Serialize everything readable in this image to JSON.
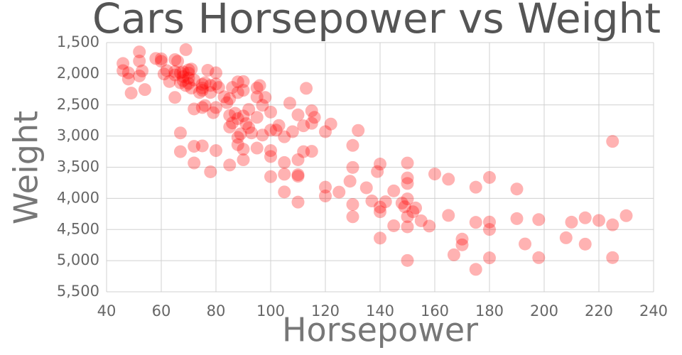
{
  "chart_data": {
    "type": "scatter",
    "title": "Cars Horsepower vs Weight",
    "x_label": "Horsepower",
    "y_label": "Weight",
    "color": "#ff0000",
    "grid": true,
    "y_inverted": true,
    "xlim": [
      40,
      240
    ],
    "xticks": [
      40,
      60,
      80,
      100,
      120,
      140,
      160,
      180,
      200,
      220,
      240
    ],
    "ylim": [
      1500,
      5500
    ],
    "yticks": [
      {
        "value": 1500,
        "label": "1,500"
      },
      {
        "value": 2000,
        "label": "2,000"
      },
      {
        "value": 2500,
        "label": "2,500"
      },
      {
        "value": 3000,
        "label": "3,000"
      },
      {
        "value": 3500,
        "label": "3,500"
      },
      {
        "value": 4000,
        "label": "4,000"
      },
      {
        "value": 4500,
        "label": "4,500"
      },
      {
        "value": 5000,
        "label": "5,000"
      },
      {
        "value": 5500,
        "label": "5,500"
      }
    ],
    "x": [
      46,
      46,
      48,
      48,
      49,
      52,
      52,
      52,
      53,
      54,
      58,
      60,
      60,
      61,
      62,
      63,
      65,
      65,
      65,
      65,
      66,
      67,
      67,
      67,
      67,
      68,
      68,
      68,
      69,
      69,
      70,
      70,
      70,
      70,
      71,
      71,
      72,
      72,
      72,
      72,
      74,
      75,
      75,
      75,
      75,
      75,
      76,
      76,
      77,
      78,
      78,
      78,
      79,
      80,
      80,
      80,
      80,
      81,
      83,
      84,
      85,
      85,
      85,
      85,
      86,
      86,
      87,
      88,
      88,
      88,
      88,
      88,
      89,
      90,
      90,
      90,
      90,
      90,
      91,
      92,
      92,
      93,
      95,
      95,
      95,
      95,
      96,
      97,
      97,
      98,
      100,
      100,
      100,
      100,
      100,
      102,
      103,
      105,
      105,
      105,
      105,
      107,
      108,
      110,
      110,
      110,
      110,
      110,
      112,
      112,
      113,
      115,
      115,
      115,
      116,
      120,
      120,
      120,
      122,
      125,
      129,
      130,
      130,
      130,
      130,
      132,
      135,
      137,
      139,
      140,
      140,
      140,
      140,
      142,
      145,
      145,
      148,
      149,
      150,
      150,
      150,
      150,
      150,
      150,
      150,
      152,
      153,
      155,
      158,
      160,
      165,
      165,
      167,
      170,
      170,
      175,
      175,
      175,
      180,
      180,
      180,
      180,
      190,
      190,
      193,
      198,
      198,
      208,
      210,
      215,
      215,
      220,
      225,
      225,
      225,
      230
    ],
    "values": [
      1835,
      1950,
      2085,
      1985,
      2310,
      1649,
      2035,
      1795,
      1955,
      2254,
      1755,
      1760,
      1800,
      2003,
      1950,
      2125,
      1773,
      1965,
      2019,
      2380,
      1800,
      1985,
      2145,
      2950,
      3250,
      1970,
      2045,
      2110,
      1613,
      2189,
      1990,
      2070,
      2155,
      1937,
      2230,
      1925,
      2100,
      2565,
      3165,
      3432,
      2300,
      2171,
      2230,
      2265,
      2542,
      3158,
      2144,
      2511,
      1945,
      2188,
      2300,
      3574,
      2625,
      2164,
      1985,
      2542,
      3233,
      2220,
      2370,
      2464,
      2400,
      2670,
      2855,
      3465,
      2220,
      2790,
      2634,
      2130,
      2302,
      2720,
      3021,
      3139,
      2965,
      2125,
      2265,
      2678,
      3211,
      3381,
      2800,
      2572,
      2865,
      2950,
      2228,
      2372,
      2700,
      3193,
      2189,
      2506,
      2984,
      2380,
      2615,
      2905,
      3233,
      3329,
      3651,
      2905,
      2830,
      3012,
      3425,
      3613,
      3897,
      2472,
      2930,
      2660,
      3380,
      3645,
      3620,
      4060,
      2835,
      3250,
      2234,
      2595,
      2795,
      3245,
      2700,
      2930,
      3820,
      3962,
      2807,
      3900,
      3725,
      3150,
      3504,
      4098,
      4295,
      2910,
      3830,
      4042,
      3570,
      3449,
      4141,
      4215,
      4638,
      4054,
      3880,
      4440,
      4075,
      4135,
      3433,
      3672,
      3761,
      4008,
      4294,
      4457,
      4997,
      4215,
      4154,
      4360,
      4445,
      3609,
      3693,
      4274,
      4906,
      4654,
      4746,
      3821,
      4385,
      5140,
      3664,
      4380,
      4499,
      4955,
      3850,
      4325,
      4732,
      4341,
      4952,
      4633,
      4382,
      4312,
      4735,
      4354,
      3086,
      4951,
      4425,
      4278
    ]
  }
}
